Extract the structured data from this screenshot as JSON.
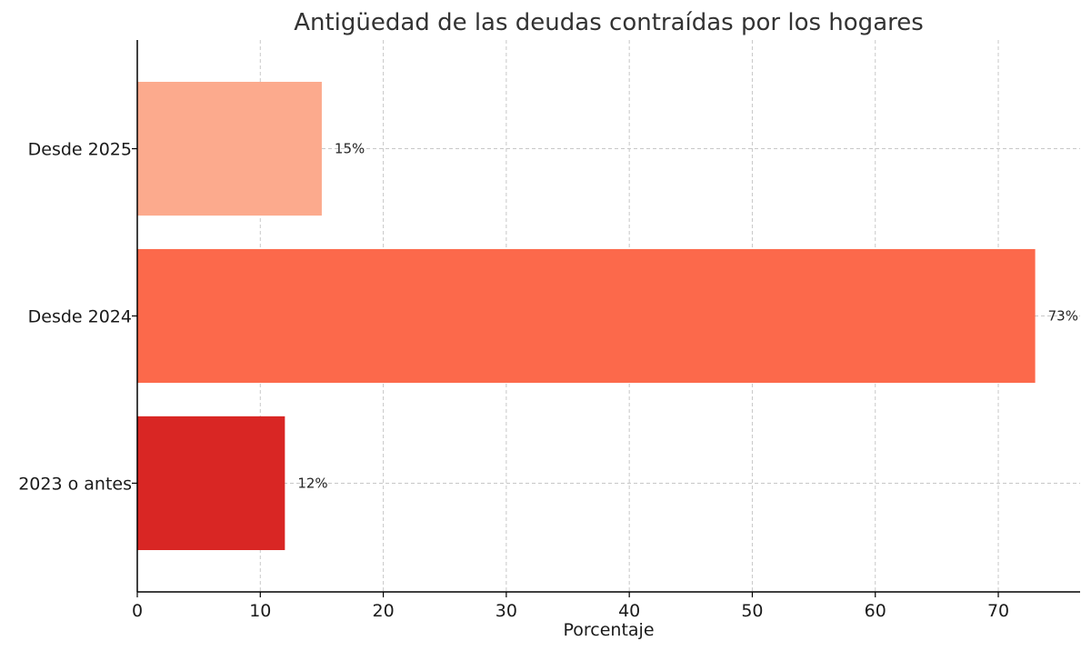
{
  "chart_data": {
    "type": "bar",
    "orientation": "horizontal",
    "title": "Antigüedad de las deudas contraídas por los hogares",
    "xlabel": "Porcentaje",
    "ylabel": "",
    "categories": [
      "2023 o antes",
      "Desde 2024",
      "Desde 2025"
    ],
    "values": [
      12,
      73,
      15
    ],
    "value_labels": [
      "12%",
      "73%",
      "15%"
    ],
    "colors": [
      "#d92624",
      "#fc694b",
      "#fcaa8d"
    ],
    "xlim": [
      0,
      76.65
    ],
    "xticks": [
      0,
      10,
      20,
      30,
      40,
      50,
      60,
      70
    ],
    "grid": true
  }
}
